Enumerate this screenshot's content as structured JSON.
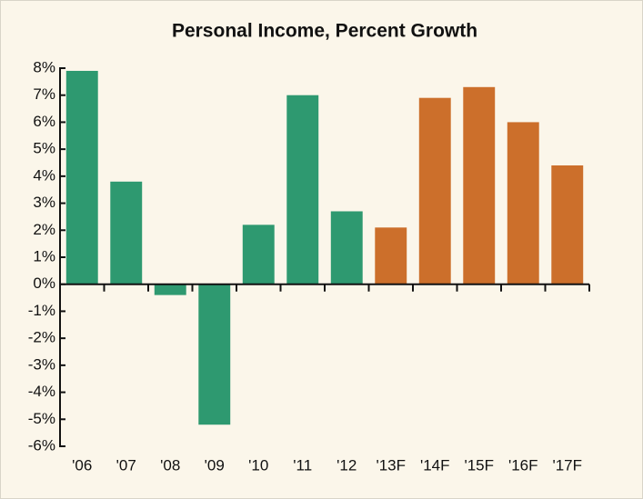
{
  "chart_data": {
    "type": "bar",
    "title": "Personal Income, Percent Growth",
    "categories": [
      "'06",
      "'07",
      "'08",
      "'09",
      "'10",
      "'11",
      "'12",
      "'13F",
      "'14F",
      "'15F",
      "'16F",
      "'17F"
    ],
    "values": [
      7.9,
      3.8,
      -0.4,
      -5.2,
      2.2,
      7.0,
      2.7,
      2.1,
      6.9,
      7.3,
      6.0,
      4.4
    ],
    "colors": [
      "#2e9970",
      "#2e9970",
      "#2e9970",
      "#2e9970",
      "#2e9970",
      "#2e9970",
      "#2e9970",
      "#cc6f2b",
      "#cc6f2b",
      "#cc6f2b",
      "#cc6f2b",
      "#cc6f2b"
    ],
    "ylim": [
      -6,
      8
    ],
    "yticks": [
      {
        "value": -6,
        "label": "-6%"
      },
      {
        "value": -5,
        "label": "-5%"
      },
      {
        "value": -4,
        "label": "-4%"
      },
      {
        "value": -3,
        "label": "-3%"
      },
      {
        "value": -2,
        "label": "-2%"
      },
      {
        "value": -1,
        "label": "-1%"
      },
      {
        "value": 0,
        "label": "0%"
      },
      {
        "value": 1,
        "label": "1%"
      },
      {
        "value": 2,
        "label": "2%"
      },
      {
        "value": 3,
        "label": "3%"
      },
      {
        "value": 4,
        "label": "4%"
      },
      {
        "value": 5,
        "label": "5%"
      },
      {
        "value": 6,
        "label": "6%"
      },
      {
        "value": 7,
        "label": "7%"
      },
      {
        "value": 8,
        "label": "8%"
      }
    ],
    "grid": false
  }
}
